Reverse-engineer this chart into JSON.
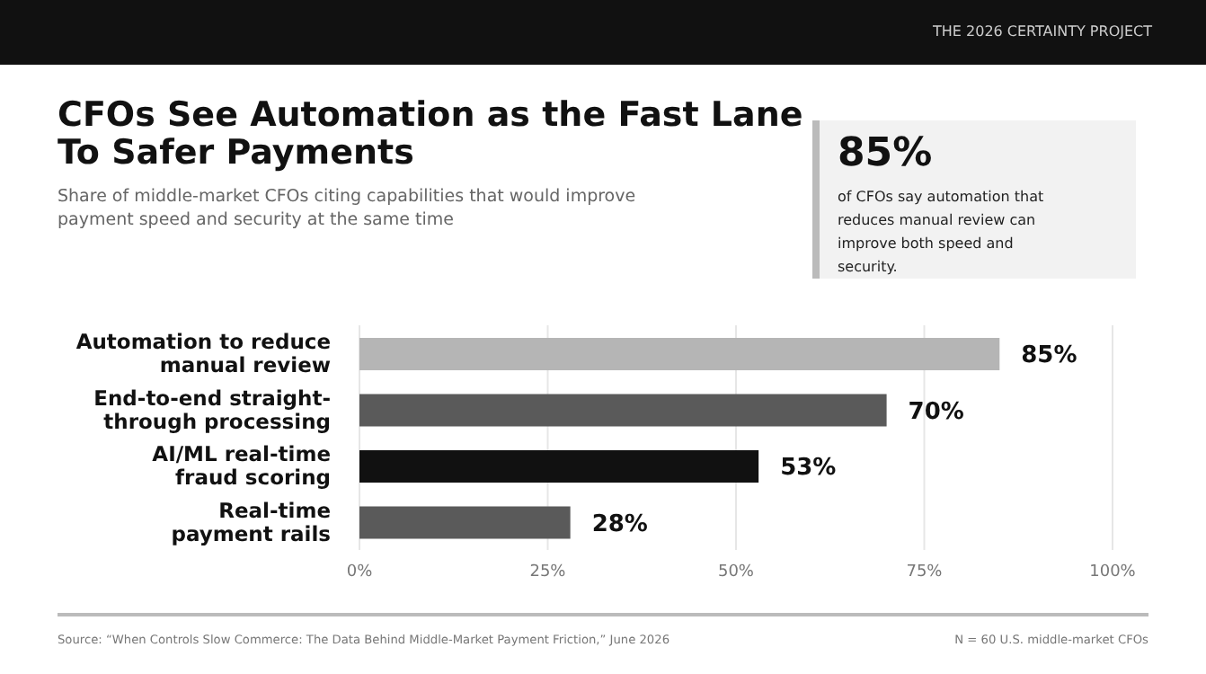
{
  "chart_data": {
    "type": "bar",
    "orientation": "horizontal",
    "title": "CFOs See Automation as the Fast Lane To Safer Payments",
    "subtitle": "Share of middle-market CFOs citing capabilities that would improve payment speed and security at the same time",
    "categories": [
      "Automation to reduce\nmanual review",
      "End-to-end straight-\nthrough processing",
      "AI/ML real-time\nfraud scoring",
      "Real-time\npayment rails"
    ],
    "values": [
      85,
      70,
      53,
      28
    ],
    "colors": [
      "#b5b5b5",
      "#5a5a5a",
      "#111111",
      "#5a5a5a"
    ],
    "value_labels": [
      "85%",
      "70%",
      "53%",
      "28%"
    ],
    "xlim": [
      0,
      100
    ],
    "xticks": [
      {
        "value": 0,
        "label": "0%"
      },
      {
        "value": 25,
        "label": "25%"
      },
      {
        "value": 50,
        "label": "50%"
      },
      {
        "value": 75,
        "label": "75%"
      },
      {
        "value": 100,
        "label": "100%"
      }
    ],
    "grid": "x",
    "annotations": [
      "THE 2026 CERTAINTY PROJECT",
      "85%",
      "of CFOs say automation that reduces manual review can improve both speed and security.",
      "Source: “When Controls Slow Commerce: The Data Behind Middle-Market Payment Friction,” June 2026",
      "N = 60 U.S. middle-market CFOs"
    ]
  }
}
